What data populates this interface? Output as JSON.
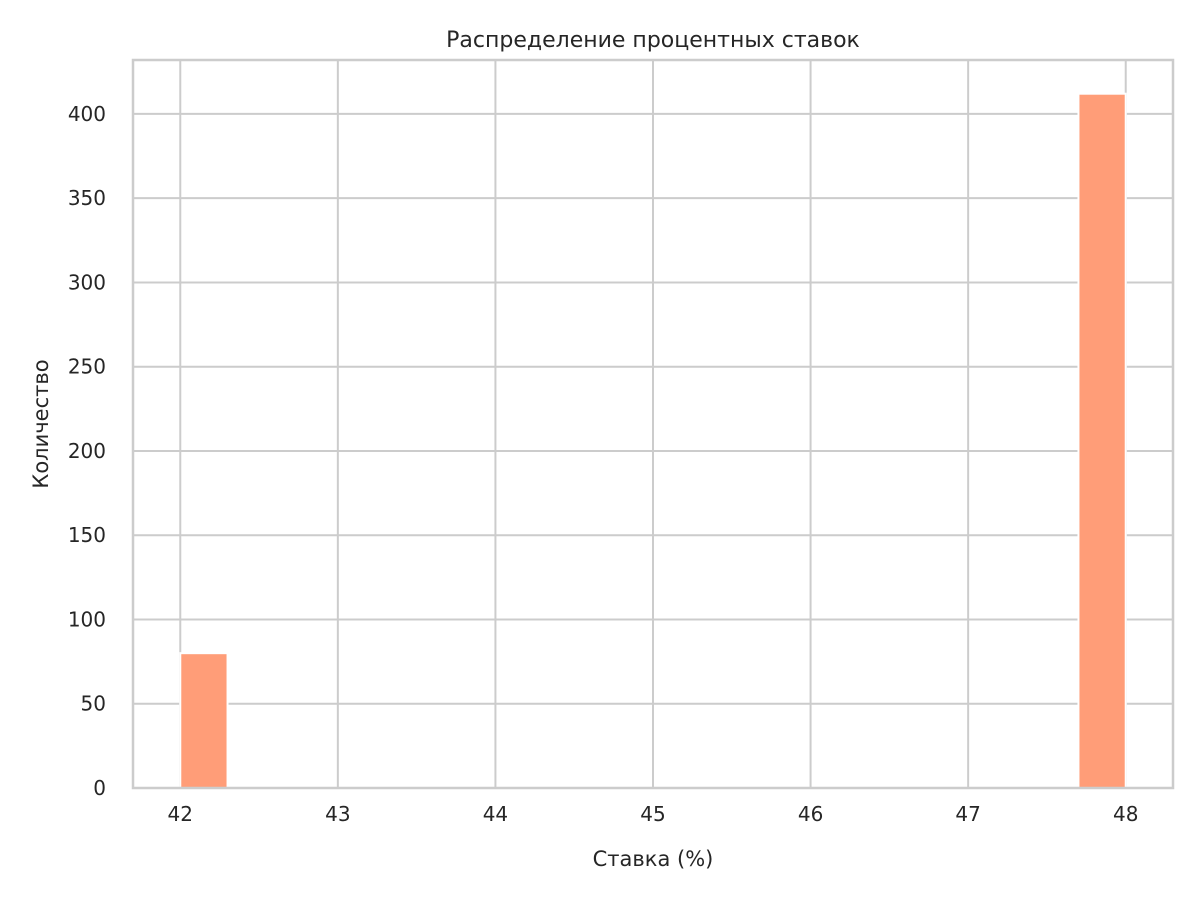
{
  "chart_data": {
    "type": "bar",
    "title": "Распределение процентных ставок",
    "xlabel": "Ставка (%)",
    "ylabel": "Количество",
    "xlim": [
      41.7,
      48.3
    ],
    "ylim": [
      0,
      432
    ],
    "xticks": [
      42,
      43,
      44,
      45,
      46,
      47,
      48
    ],
    "yticks": [
      0,
      50,
      100,
      150,
      200,
      250,
      300,
      350,
      400
    ],
    "bins": [
      {
        "start": 42.0,
        "end": 42.3,
        "count": 80
      },
      {
        "start": 47.7,
        "end": 48.0,
        "count": 412
      }
    ],
    "grid": true,
    "bar_color": "#ff9d78"
  }
}
